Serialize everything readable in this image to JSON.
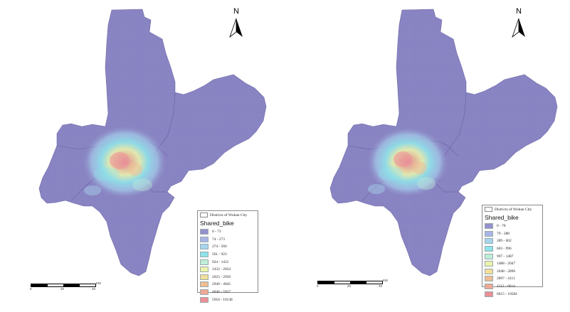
{
  "north_label": "N",
  "layer_label": "Districts of Wuhan City",
  "field_title": "Shared_bike",
  "scale": {
    "unit": "KM",
    "ticks": [
      "0",
      "20",
      "40"
    ]
  },
  "colors": {
    "base_fill": "#8b86c4",
    "district_lines": "#6f6aa8",
    "classes": [
      "#9590cc",
      "#a9b5e6",
      "#a8d4ee",
      "#8fe3ea",
      "#bfeed7",
      "#ecf2ac",
      "#f1df9a",
      "#eebd95",
      "#eea895",
      "#ec8f97"
    ]
  },
  "maps": [
    {
      "id": "left",
      "legend": [
        "0 - 73",
        "74 - 273",
        "274 - 560",
        "561 - 923",
        "924 - 1431",
        "1432 - 2024",
        "2025 - 2939",
        "2940 - 4045",
        "4046 - 5917",
        "5918 - 10138"
      ]
    },
    {
      "id": "right",
      "legend": [
        "0 - 78",
        "79 - 288",
        "289 - 602",
        "603 - 996",
        "997 - 1487",
        "1488 - 2047",
        "2048 - 2896",
        "2897 - 4111",
        "4112 - 6614",
        "6615 - 10584"
      ]
    }
  ]
}
